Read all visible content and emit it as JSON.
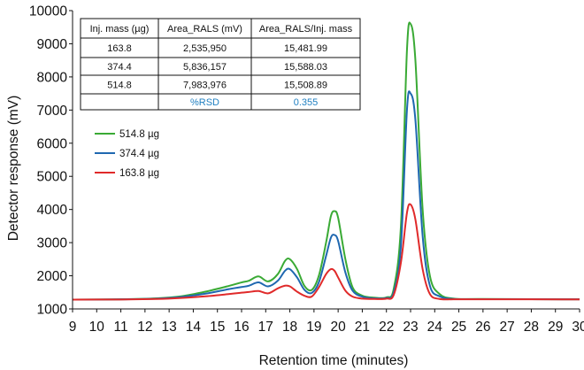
{
  "chart_data": {
    "type": "line",
    "title": "",
    "xlabel": "Retention time (minutes)",
    "ylabel": "Detector response (mV)",
    "xlim": [
      9,
      30
    ],
    "ylim": [
      1000,
      10000
    ],
    "x_ticks": [
      9,
      10,
      11,
      12,
      13,
      14,
      15,
      16,
      17,
      18,
      19,
      20,
      21,
      22,
      23,
      24,
      25,
      26,
      27,
      28,
      29,
      30
    ],
    "y_ticks": [
      1000,
      2000,
      3000,
      4000,
      5000,
      6000,
      7000,
      8000,
      9000,
      10000
    ],
    "grid": false,
    "legend_position": "left",
    "series": [
      {
        "name": "514.8 µg",
        "color": "#3aaa35",
        "points": [
          [
            9,
            1280
          ],
          [
            11,
            1290
          ],
          [
            12.5,
            1320
          ],
          [
            13.5,
            1380
          ],
          [
            14.5,
            1520
          ],
          [
            15.5,
            1700
          ],
          [
            16.0,
            1800
          ],
          [
            16.3,
            1850
          ],
          [
            16.7,
            1980
          ],
          [
            17.1,
            1830
          ],
          [
            17.5,
            2050
          ],
          [
            17.8,
            2450
          ],
          [
            18.0,
            2500
          ],
          [
            18.3,
            2200
          ],
          [
            18.6,
            1700
          ],
          [
            18.9,
            1570
          ],
          [
            19.2,
            2000
          ],
          [
            19.5,
            3000
          ],
          [
            19.7,
            3800
          ],
          [
            19.85,
            3950
          ],
          [
            20.0,
            3750
          ],
          [
            20.3,
            2500
          ],
          [
            20.6,
            1650
          ],
          [
            21.0,
            1400
          ],
          [
            21.5,
            1340
          ],
          [
            22.0,
            1350
          ],
          [
            22.3,
            1600
          ],
          [
            22.6,
            3500
          ],
          [
            22.85,
            8800
          ],
          [
            23.0,
            9600
          ],
          [
            23.2,
            8500
          ],
          [
            23.5,
            4000
          ],
          [
            23.8,
            2000
          ],
          [
            24.2,
            1450
          ],
          [
            24.8,
            1310
          ],
          [
            26,
            1300
          ],
          [
            30,
            1290
          ]
        ]
      },
      {
        "name": "374.4 µg",
        "color": "#1f68b0",
        "points": [
          [
            9,
            1280
          ],
          [
            11,
            1290
          ],
          [
            12.5,
            1310
          ],
          [
            13.5,
            1360
          ],
          [
            14.5,
            1460
          ],
          [
            15.5,
            1600
          ],
          [
            16.0,
            1660
          ],
          [
            16.3,
            1700
          ],
          [
            16.7,
            1800
          ],
          [
            17.1,
            1680
          ],
          [
            17.5,
            1850
          ],
          [
            17.8,
            2150
          ],
          [
            18.0,
            2200
          ],
          [
            18.3,
            1950
          ],
          [
            18.6,
            1580
          ],
          [
            18.9,
            1480
          ],
          [
            19.2,
            1800
          ],
          [
            19.5,
            2600
          ],
          [
            19.7,
            3150
          ],
          [
            19.85,
            3230
          ],
          [
            20.0,
            3050
          ],
          [
            20.3,
            2100
          ],
          [
            20.6,
            1550
          ],
          [
            21.0,
            1370
          ],
          [
            21.5,
            1320
          ],
          [
            22.0,
            1330
          ],
          [
            22.3,
            1500
          ],
          [
            22.6,
            2900
          ],
          [
            22.85,
            7000
          ],
          [
            23.0,
            7500
          ],
          [
            23.2,
            6700
          ],
          [
            23.5,
            3200
          ],
          [
            23.8,
            1700
          ],
          [
            24.2,
            1380
          ],
          [
            24.8,
            1300
          ],
          [
            26,
            1295
          ],
          [
            30,
            1290
          ]
        ]
      },
      {
        "name": "163.8 µg",
        "color": "#e02a2a",
        "points": [
          [
            9,
            1280
          ],
          [
            11,
            1285
          ],
          [
            12.5,
            1300
          ],
          [
            13.5,
            1330
          ],
          [
            14.5,
            1380
          ],
          [
            15.5,
            1450
          ],
          [
            16.0,
            1490
          ],
          [
            16.3,
            1510
          ],
          [
            16.7,
            1540
          ],
          [
            17.1,
            1470
          ],
          [
            17.5,
            1620
          ],
          [
            17.8,
            1700
          ],
          [
            18.0,
            1680
          ],
          [
            18.3,
            1520
          ],
          [
            18.6,
            1400
          ],
          [
            18.9,
            1370
          ],
          [
            19.2,
            1650
          ],
          [
            19.5,
            2050
          ],
          [
            19.7,
            2200
          ],
          [
            19.85,
            2150
          ],
          [
            20.0,
            1950
          ],
          [
            20.3,
            1550
          ],
          [
            20.6,
            1370
          ],
          [
            21.0,
            1310
          ],
          [
            21.5,
            1300
          ],
          [
            22.0,
            1310
          ],
          [
            22.3,
            1420
          ],
          [
            22.6,
            2400
          ],
          [
            22.85,
            3900
          ],
          [
            23.0,
            4150
          ],
          [
            23.2,
            3700
          ],
          [
            23.5,
            2200
          ],
          [
            23.8,
            1450
          ],
          [
            24.2,
            1300
          ],
          [
            24.8,
            1290
          ],
          [
            26,
            1290
          ],
          [
            30,
            1288
          ]
        ]
      }
    ],
    "table": {
      "headers": [
        "Inj. mass (µg)",
        "Area_RALS (mV)",
        "Area_RALS/Inj. mass"
      ],
      "rows": [
        [
          "163.8",
          "2,535,950",
          "15,481.99"
        ],
        [
          "374.4",
          "5,836,157",
          "15,588.03"
        ],
        [
          "514.8",
          "7,983,976",
          "15,508.89"
        ],
        [
          "",
          "%RSD",
          "0.355"
        ]
      ]
    }
  }
}
